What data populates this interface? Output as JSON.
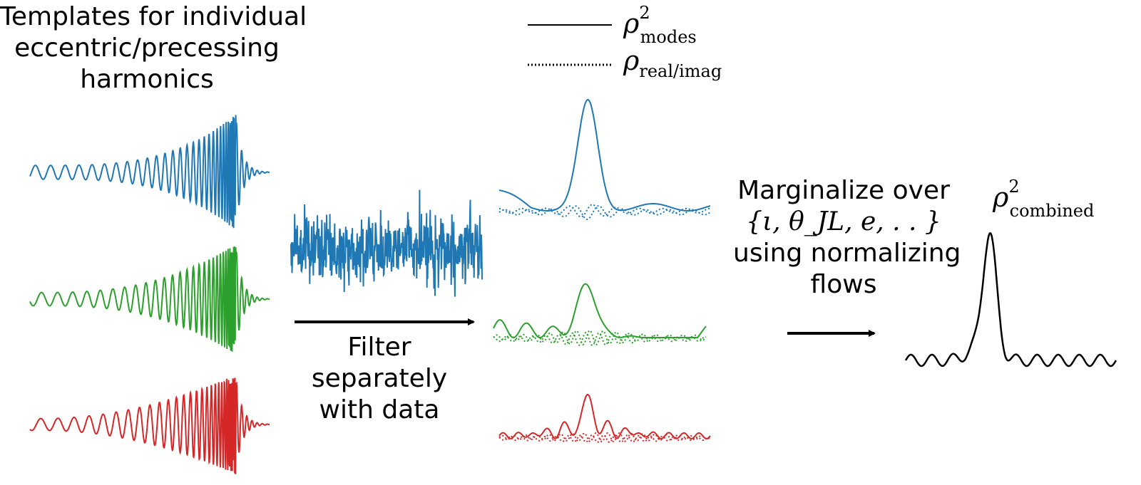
{
  "captions": {
    "templates": [
      "Templates for individual",
      "eccentric/precessing",
      "harmonics"
    ],
    "filter": [
      "Filter",
      "separately",
      "with data"
    ],
    "marginalize_line1": "Marginalize over",
    "marginalize_math": "{ι, θ_JL, e, . . }",
    "marginalize_line3": "using normalizing",
    "marginalize_line4": "flows"
  },
  "legend": {
    "solid": {
      "symbol": "ρ",
      "superscript": "2",
      "subscript": "modes"
    },
    "dotted": {
      "symbol": "ρ",
      "subscript": "real/imag"
    }
  },
  "combined_label": {
    "symbol": "ρ",
    "superscript": "2",
    "subscript": "combined"
  },
  "colors": {
    "blue": "#1f77b4",
    "green": "#2ca02c",
    "red": "#d62728",
    "black": "#000000"
  }
}
